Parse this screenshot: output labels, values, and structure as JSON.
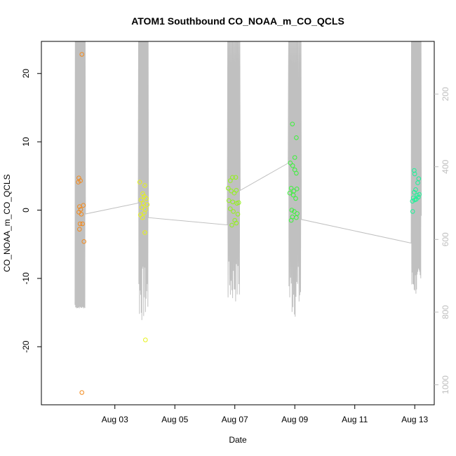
{
  "chart_data": {
    "type": "scatter",
    "title": "ATOM1 Southbound CO_NOAA_m_CO_QCLS",
    "xlabel": "Date",
    "ylabel": "CO_NOAA_m_CO_QCLS",
    "x_unit": "days since Aug 01",
    "xlim": [
      0.55,
      13.65
    ],
    "ylim": [
      -28.5,
      24.7
    ],
    "x_ticks": [
      {
        "value": 3,
        "label": "Aug 03"
      },
      {
        "value": 5,
        "label": "Aug 05"
      },
      {
        "value": 7,
        "label": "Aug 07"
      },
      {
        "value": 9,
        "label": "Aug 09"
      },
      {
        "value": 11,
        "label": "Aug 11"
      },
      {
        "value": 13,
        "label": "Aug 13"
      }
    ],
    "y_ticks": [
      -20,
      -10,
      0,
      10,
      20
    ],
    "right_axis": {
      "label": "",
      "color": "#bebebe",
      "reversed": true,
      "lim": [
        55,
        1055
      ],
      "ticks": [
        200,
        400,
        600,
        800,
        1000
      ]
    },
    "grid": false,
    "series": [
      {
        "color": "#f28a1e",
        "points": [
          [
            1.8,
            4.7
          ],
          [
            1.85,
            4.3
          ],
          [
            1.78,
            4.1
          ],
          [
            1.9,
            22.8
          ],
          [
            1.82,
            0.5
          ],
          [
            1.86,
            0.1
          ],
          [
            1.8,
            -0.3
          ],
          [
            1.88,
            -0.6
          ],
          [
            1.95,
            0.7
          ],
          [
            1.84,
            -2.0
          ],
          [
            1.92,
            -2.0
          ],
          [
            1.82,
            -2.8
          ],
          [
            1.97,
            -4.6
          ],
          [
            1.9,
            -26.7
          ]
        ]
      },
      {
        "color": "#e6f21a",
        "points": [
          [
            3.83,
            4.1
          ],
          [
            4.0,
            3.6
          ],
          [
            3.93,
            2.4
          ],
          [
            3.98,
            2.0
          ],
          [
            3.87,
            1.5
          ],
          [
            3.95,
            1.0
          ],
          [
            4.05,
            1.7
          ],
          [
            3.9,
            0.4
          ],
          [
            4.02,
            0.1
          ],
          [
            3.85,
            -0.7
          ],
          [
            3.92,
            -1.1
          ],
          [
            3.98,
            -0.4
          ],
          [
            4.08,
            0.8
          ],
          [
            4.0,
            -3.3
          ],
          [
            4.02,
            -19.0
          ]
        ]
      },
      {
        "color": "#93f21a",
        "points": [
          [
            6.92,
            4.8
          ],
          [
            6.85,
            4.3
          ],
          [
            7.03,
            4.8
          ],
          [
            6.78,
            3.2
          ],
          [
            6.88,
            2.8
          ],
          [
            6.98,
            2.5
          ],
          [
            7.05,
            2.9
          ],
          [
            6.8,
            1.4
          ],
          [
            6.93,
            1.2
          ],
          [
            7.07,
            1.0
          ],
          [
            7.13,
            1.1
          ],
          [
            6.85,
            0.2
          ],
          [
            6.95,
            -0.2
          ],
          [
            7.1,
            -0.6
          ],
          [
            7.0,
            -1.5
          ],
          [
            6.9,
            -2.2
          ],
          [
            7.05,
            -1.9
          ]
        ]
      },
      {
        "color": "#3af23a",
        "points": [
          [
            8.92,
            12.6
          ],
          [
            9.05,
            10.6
          ],
          [
            9.0,
            7.7
          ],
          [
            8.85,
            6.9
          ],
          [
            8.93,
            6.5
          ],
          [
            9.0,
            5.9
          ],
          [
            9.05,
            5.4
          ],
          [
            8.88,
            3.2
          ],
          [
            8.97,
            2.8
          ],
          [
            9.07,
            3.1
          ],
          [
            8.83,
            2.5
          ],
          [
            8.95,
            2.2
          ],
          [
            9.03,
            1.7
          ],
          [
            8.9,
            0.0
          ],
          [
            8.98,
            -0.2
          ],
          [
            9.08,
            -0.5
          ],
          [
            8.92,
            -1.0
          ],
          [
            9.05,
            -1.1
          ],
          [
            8.88,
            -1.5
          ]
        ]
      },
      {
        "color": "#1af296",
        "points": [
          [
            12.98,
            5.8
          ],
          [
            13.0,
            5.3
          ],
          [
            13.13,
            4.6
          ],
          [
            13.1,
            4.0
          ],
          [
            13.03,
            3.0
          ],
          [
            12.98,
            2.6
          ],
          [
            13.08,
            2.2
          ],
          [
            13.15,
            2.3
          ],
          [
            12.95,
            1.8
          ],
          [
            13.05,
            1.6
          ],
          [
            13.12,
            1.9
          ],
          [
            12.92,
            1.3
          ],
          [
            13.0,
            1.5
          ],
          [
            12.93,
            -0.2
          ]
        ]
      }
    ],
    "background_trace": {
      "color": "#c0c0c0",
      "axis": "right",
      "bursts": [
        {
          "x_start": 1.67,
          "x_end": 2.02,
          "y_start": 780,
          "y_end": 530,
          "min": 55,
          "max": 790
        },
        {
          "x_start": 3.78,
          "x_end": 4.12,
          "y_start": 500,
          "y_end": 540,
          "min": 55,
          "max": 830
        },
        {
          "x_start": 6.75,
          "x_end": 7.18,
          "y_start": 560,
          "y_end": 465,
          "min": 55,
          "max": 780
        },
        {
          "x_start": 8.78,
          "x_end": 9.22,
          "y_start": 390,
          "y_end": 545,
          "min": 55,
          "max": 820
        },
        {
          "x_start": 12.88,
          "x_end": 13.22,
          "y_start": 610,
          "y_end": 535,
          "min": 55,
          "max": 760
        }
      ]
    }
  }
}
